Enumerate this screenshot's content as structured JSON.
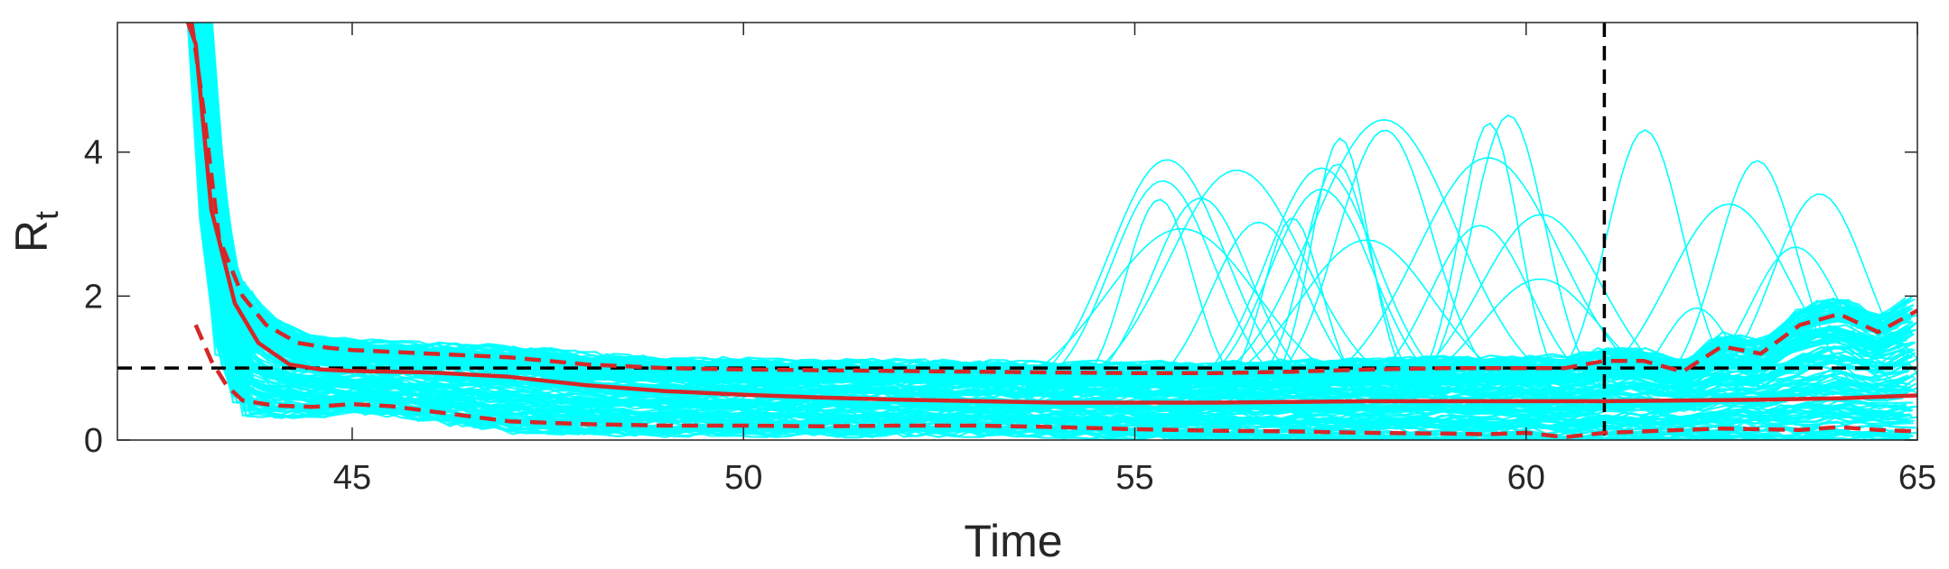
{
  "chart_data": {
    "type": "line",
    "xlabel": "Time",
    "ylabel": "R",
    "ylabel_subscript": "t",
    "xlim": [
      42,
      65
    ],
    "ylim": [
      0,
      5.8
    ],
    "xticks": [
      45,
      50,
      55,
      60,
      65
    ],
    "yticks": [
      0,
      2,
      4
    ],
    "grid": false,
    "legend": "none",
    "colors": {
      "samples": "#00ffff",
      "median": "#d62728",
      "interval": "#d62728",
      "reference": "#000000",
      "axis": "#262626"
    },
    "reference_lines": {
      "horizontal_y": 1,
      "vertical_x": 61
    },
    "series": [
      {
        "role": "median",
        "style": "solid",
        "x": [
          42.9,
          43.0,
          43.2,
          43.5,
          43.8,
          44.2,
          44.6,
          45.0,
          46,
          47,
          48,
          49,
          50,
          51,
          52,
          53,
          54,
          55,
          56,
          57,
          58,
          59,
          60,
          61,
          62,
          63,
          64,
          65
        ],
        "y": [
          5.8,
          5.5,
          3.2,
          1.9,
          1.35,
          1.05,
          0.98,
          0.96,
          0.94,
          0.88,
          0.76,
          0.68,
          0.63,
          0.59,
          0.56,
          0.54,
          0.52,
          0.52,
          0.52,
          0.53,
          0.54,
          0.54,
          0.54,
          0.54,
          0.55,
          0.56,
          0.58,
          0.62
        ]
      },
      {
        "role": "upper",
        "style": "dashed",
        "x": [
          42.95,
          43.1,
          43.3,
          43.6,
          43.9,
          44.3,
          44.7,
          45,
          46,
          47,
          48,
          49,
          50,
          51,
          52,
          53,
          54,
          55,
          56,
          57,
          58,
          59,
          60,
          60.5,
          61,
          61.5,
          62,
          62.5,
          63,
          63.5,
          64,
          64.5,
          65
        ],
        "y": [
          5.8,
          4.6,
          2.8,
          2.0,
          1.6,
          1.35,
          1.28,
          1.25,
          1.2,
          1.15,
          1.05,
          1.0,
          0.98,
          0.97,
          0.96,
          0.95,
          0.94,
          0.93,
          0.93,
          0.95,
          0.98,
          1.0,
          1.0,
          1.0,
          1.1,
          1.1,
          0.95,
          1.3,
          1.2,
          1.6,
          1.75,
          1.5,
          1.8
        ]
      },
      {
        "role": "lower",
        "style": "dashed",
        "x": [
          43.0,
          43.2,
          43.4,
          43.6,
          44,
          44.5,
          45,
          45.5,
          46,
          46.5,
          47,
          48,
          49,
          50,
          51,
          52,
          53,
          54,
          55,
          56,
          57,
          58,
          59,
          59.5,
          60,
          60.5,
          61,
          61.5,
          62,
          62.5,
          63,
          63.5,
          64,
          64.5,
          65
        ],
        "y": [
          1.6,
          1.1,
          0.75,
          0.55,
          0.48,
          0.46,
          0.5,
          0.47,
          0.4,
          0.33,
          0.26,
          0.22,
          0.2,
          0.2,
          0.19,
          0.2,
          0.2,
          0.18,
          0.15,
          0.13,
          0.12,
          0.1,
          0.09,
          0.08,
          0.1,
          0.04,
          0.1,
          0.12,
          0.14,
          0.16,
          0.15,
          0.14,
          0.18,
          0.14,
          0.12
        ]
      }
    ]
  }
}
